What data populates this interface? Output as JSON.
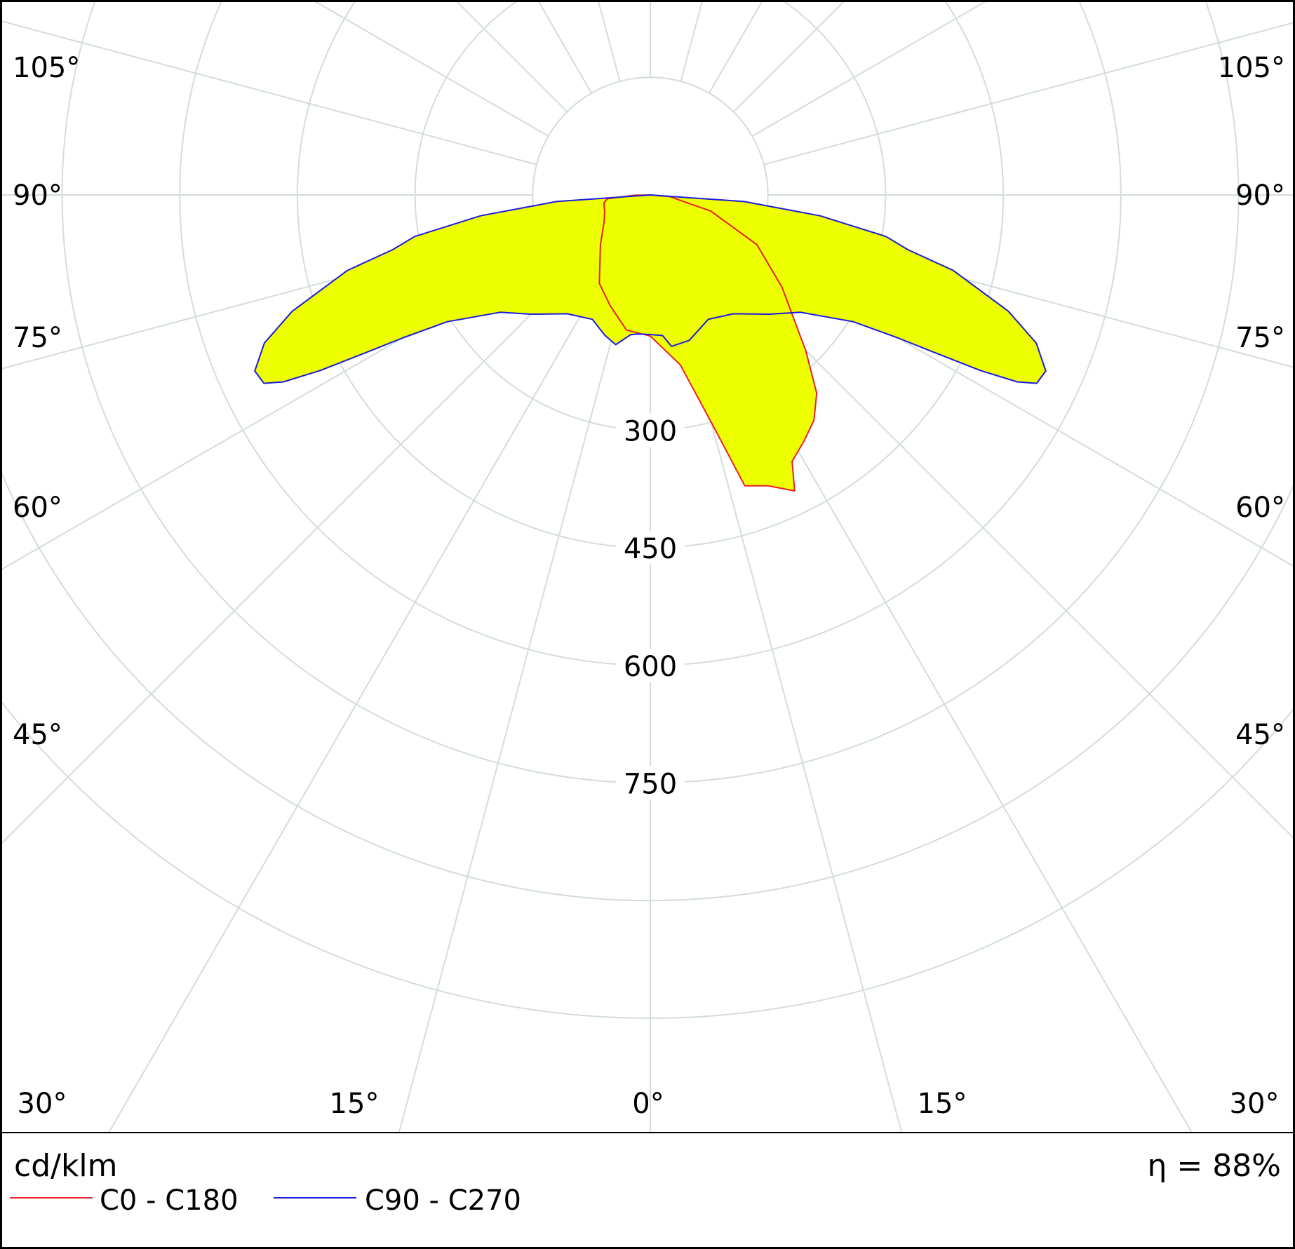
{
  "chart_data": {
    "type": "polar",
    "unit_label": "cd/klm",
    "efficiency_label": "η = 88%",
    "efficiency_percent": 88,
    "radial_ticks": [
      300,
      450,
      600,
      750
    ],
    "radial_tick_labels": [
      "300",
      "450",
      "600",
      "750"
    ],
    "angle_labels": {
      "bottom": [
        "30°",
        "15°",
        "0°",
        "15°",
        "30°"
      ],
      "left": [
        "105°",
        "90°",
        "75°",
        "60°",
        "45°"
      ],
      "right": [
        "105°",
        "90°",
        "75°",
        "60°",
        "45°"
      ]
    },
    "legend": [
      {
        "label": "C0 - C180",
        "color": "#e8202a"
      },
      {
        "label": "C90 - C270",
        "color": "#1b1be0"
      }
    ],
    "fill_color": "#eeff00",
    "grid_color": "#d3dcdc",
    "series": [
      {
        "name": "C0 - C180",
        "color": "#e8202a",
        "points": [
          {
            "gamma": -90,
            "cd": 0
          },
          {
            "gamma": -89,
            "cd": 20
          },
          {
            "gamma": -85,
            "cd": 55
          },
          {
            "gamma": -80,
            "cd": 60
          },
          {
            "gamma": -70,
            "cd": 62
          },
          {
            "gamma": -60,
            "cd": 68
          },
          {
            "gamma": -45,
            "cd": 90
          },
          {
            "gamma": -30,
            "cd": 130
          },
          {
            "gamma": -20,
            "cd": 150
          },
          {
            "gamma": -10,
            "cd": 175
          },
          {
            "gamma": 0,
            "cd": 180
          },
          {
            "gamma": 10,
            "cd": 220
          },
          {
            "gamma": 15,
            "cd": 300
          },
          {
            "gamma": 18,
            "cd": 390
          },
          {
            "gamma": 22,
            "cd": 400
          },
          {
            "gamma": 26,
            "cd": 420
          },
          {
            "gamma": 28,
            "cd": 385
          },
          {
            "gamma": 32,
            "cd": 370
          },
          {
            "gamma": 36,
            "cd": 355
          },
          {
            "gamma": 40,
            "cd": 330
          },
          {
            "gamma": 45,
            "cd": 280
          },
          {
            "gamma": 55,
            "cd": 205
          },
          {
            "gamma": 65,
            "cd": 150
          },
          {
            "gamma": 75,
            "cd": 80
          },
          {
            "gamma": 85,
            "cd": 25
          },
          {
            "gamma": 90,
            "cd": 0
          }
        ]
      },
      {
        "name": "C90 - C270",
        "color": "#1b1be0",
        "points": [
          {
            "gamma": -90,
            "cd": 0
          },
          {
            "gamma": -86,
            "cd": 120
          },
          {
            "gamma": -83,
            "cd": 218
          },
          {
            "gamma": -80,
            "cd": 305
          },
          {
            "gamma": -78,
            "cd": 336
          },
          {
            "gamma": -76,
            "cd": 398
          },
          {
            "gamma": -72,
            "cd": 480
          },
          {
            "gamma": -69,
            "cd": 527
          },
          {
            "gamma": -66,
            "cd": 552
          },
          {
            "gamma": -64,
            "cd": 548
          },
          {
            "gamma": -63,
            "cd": 525
          },
          {
            "gamma": -62,
            "cd": 477
          },
          {
            "gamma": -61,
            "cd": 415
          },
          {
            "gamma": -60,
            "cd": 365
          },
          {
            "gamma": -58,
            "cd": 305
          },
          {
            "gamma": -52,
            "cd": 243
          },
          {
            "gamma": -45,
            "cd": 215
          },
          {
            "gamma": -35,
            "cd": 185
          },
          {
            "gamma": -25,
            "cd": 175
          },
          {
            "gamma": -18,
            "cd": 188
          },
          {
            "gamma": -13,
            "cd": 196
          },
          {
            "gamma": -8,
            "cd": 180
          },
          {
            "gamma": -5,
            "cd": 178
          },
          {
            "gamma": 0,
            "cd": 178
          },
          {
            "gamma": 5,
            "cd": 180
          },
          {
            "gamma": 8,
            "cd": 195
          },
          {
            "gamma": 15,
            "cd": 192
          },
          {
            "gamma": 25,
            "cd": 175
          },
          {
            "gamma": 35,
            "cd": 185
          },
          {
            "gamma": 45,
            "cd": 215
          },
          {
            "gamma": 52,
            "cd": 243
          },
          {
            "gamma": 58,
            "cd": 305
          },
          {
            "gamma": 60,
            "cd": 365
          },
          {
            "gamma": 61,
            "cd": 415
          },
          {
            "gamma": 62,
            "cd": 477
          },
          {
            "gamma": 63,
            "cd": 525
          },
          {
            "gamma": 64,
            "cd": 548
          },
          {
            "gamma": 66,
            "cd": 552
          },
          {
            "gamma": 69,
            "cd": 527
          },
          {
            "gamma": 72,
            "cd": 480
          },
          {
            "gamma": 76,
            "cd": 398
          },
          {
            "gamma": 78,
            "cd": 336
          },
          {
            "gamma": 80,
            "cd": 305
          },
          {
            "gamma": 83,
            "cd": 218
          },
          {
            "gamma": 86,
            "cd": 120
          },
          {
            "gamma": 90,
            "cd": 0
          }
        ]
      }
    ]
  }
}
